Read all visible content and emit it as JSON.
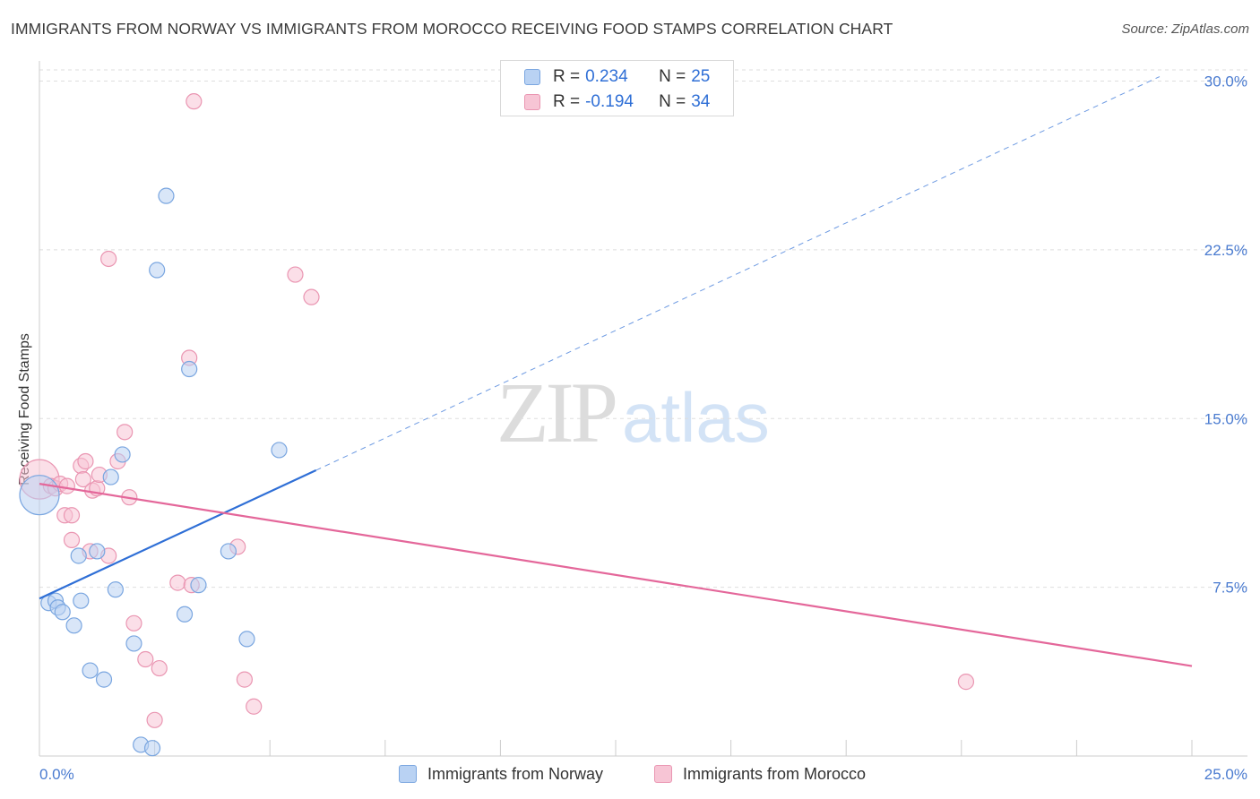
{
  "title": "IMMIGRANTS FROM NORWAY VS IMMIGRANTS FROM MOROCCO RECEIVING FOOD STAMPS CORRELATION CHART",
  "source": "Source: ZipAtlas.com",
  "watermark": {
    "zip": "ZIP",
    "atlas": "atlas"
  },
  "legend": {
    "norway": {
      "r_label": "R =",
      "r_value": "0.234",
      "n_label": "N =",
      "n_value": "25"
    },
    "morocco": {
      "r_label": "R =",
      "r_value": "-0.194",
      "n_label": "N =",
      "n_value": "34"
    }
  },
  "colors": {
    "norway_fill": "#b9d2f3",
    "norway_stroke": "#7aa6e0",
    "norway_line": "#2f6fd6",
    "morocco_fill": "#f7c5d5",
    "morocco_stroke": "#ea96b2",
    "morocco_line": "#e4679a",
    "grid": "#dedede",
    "axis_text": "#4a7bd0"
  },
  "chart_data": {
    "type": "scatter",
    "title": "IMMIGRANTS FROM NORWAY VS IMMIGRANTS FROM MOROCCO RECEIVING FOOD STAMPS CORRELATION CHART",
    "xlabel": "",
    "ylabel": "Receiving Food Stamps",
    "xlim": [
      0,
      25
    ],
    "ylim": [
      0,
      30.5
    ],
    "x_tick_labels": [
      "0.0%",
      "25.0%"
    ],
    "y_ticks": [
      7.5,
      15.0,
      22.5,
      30.0
    ],
    "y_tick_labels": [
      "7.5%",
      "15.0%",
      "22.5%",
      "30.0%"
    ],
    "grid": true,
    "series": [
      {
        "name": "Immigrants from Norway",
        "color": "#7aa6e0",
        "points": [
          {
            "x": 0.0,
            "y": 11.6,
            "size": "large"
          },
          {
            "x": 0.2,
            "y": 6.8
          },
          {
            "x": 0.35,
            "y": 6.9
          },
          {
            "x": 0.4,
            "y": 6.6
          },
          {
            "x": 0.5,
            "y": 6.4
          },
          {
            "x": 0.75,
            "y": 5.8
          },
          {
            "x": 0.9,
            "y": 6.9
          },
          {
            "x": 0.85,
            "y": 8.9
          },
          {
            "x": 1.1,
            "y": 3.8
          },
          {
            "x": 1.25,
            "y": 9.1
          },
          {
            "x": 1.4,
            "y": 3.4
          },
          {
            "x": 1.55,
            "y": 12.4
          },
          {
            "x": 1.65,
            "y": 7.4
          },
          {
            "x": 1.8,
            "y": 13.4
          },
          {
            "x": 2.05,
            "y": 5.0
          },
          {
            "x": 2.2,
            "y": 0.5
          },
          {
            "x": 2.45,
            "y": 0.35
          },
          {
            "x": 2.55,
            "y": 21.6
          },
          {
            "x": 2.75,
            "y": 24.9
          },
          {
            "x": 3.15,
            "y": 6.3
          },
          {
            "x": 3.25,
            "y": 17.2
          },
          {
            "x": 3.45,
            "y": 7.6
          },
          {
            "x": 4.1,
            "y": 9.1
          },
          {
            "x": 4.5,
            "y": 5.2
          },
          {
            "x": 5.2,
            "y": 13.6
          }
        ],
        "trend": {
          "x": [
            0.0,
            6.0
          ],
          "y": [
            7.0,
            12.7
          ],
          "extended": {
            "x": [
              6.0,
              24.3
            ],
            "y": [
              12.7,
              30.2
            ]
          }
        }
      },
      {
        "name": "Immigrants from Morocco",
        "color": "#ea96b2",
        "points": [
          {
            "x": 0.0,
            "y": 12.3,
            "size": "large"
          },
          {
            "x": 0.25,
            "y": 12.0
          },
          {
            "x": 0.35,
            "y": 11.9
          },
          {
            "x": 0.45,
            "y": 12.1
          },
          {
            "x": 0.55,
            "y": 10.7
          },
          {
            "x": 0.6,
            "y": 12.0
          },
          {
            "x": 0.7,
            "y": 10.7
          },
          {
            "x": 0.7,
            "y": 9.6
          },
          {
            "x": 0.9,
            "y": 12.9
          },
          {
            "x": 0.95,
            "y": 12.3
          },
          {
            "x": 1.0,
            "y": 13.1
          },
          {
            "x": 1.1,
            "y": 9.1
          },
          {
            "x": 1.15,
            "y": 11.8
          },
          {
            "x": 1.25,
            "y": 11.9
          },
          {
            "x": 1.3,
            "y": 12.5
          },
          {
            "x": 1.5,
            "y": 8.9
          },
          {
            "x": 1.5,
            "y": 22.1
          },
          {
            "x": 1.7,
            "y": 13.1
          },
          {
            "x": 1.85,
            "y": 14.4
          },
          {
            "x": 1.95,
            "y": 11.5
          },
          {
            "x": 2.05,
            "y": 5.9
          },
          {
            "x": 2.3,
            "y": 4.3
          },
          {
            "x": 2.5,
            "y": 1.6
          },
          {
            "x": 2.6,
            "y": 3.9
          },
          {
            "x": 3.0,
            "y": 7.7
          },
          {
            "x": 3.25,
            "y": 17.7
          },
          {
            "x": 3.3,
            "y": 7.6
          },
          {
            "x": 3.35,
            "y": 29.1
          },
          {
            "x": 4.3,
            "y": 9.3
          },
          {
            "x": 4.45,
            "y": 3.4
          },
          {
            "x": 4.65,
            "y": 2.2
          },
          {
            "x": 5.55,
            "y": 21.4
          },
          {
            "x": 5.9,
            "y": 20.4
          },
          {
            "x": 20.1,
            "y": 3.3
          }
        ],
        "trend": {
          "x": [
            0.0,
            25.0
          ],
          "y": [
            12.1,
            4.0
          ]
        }
      }
    ]
  }
}
